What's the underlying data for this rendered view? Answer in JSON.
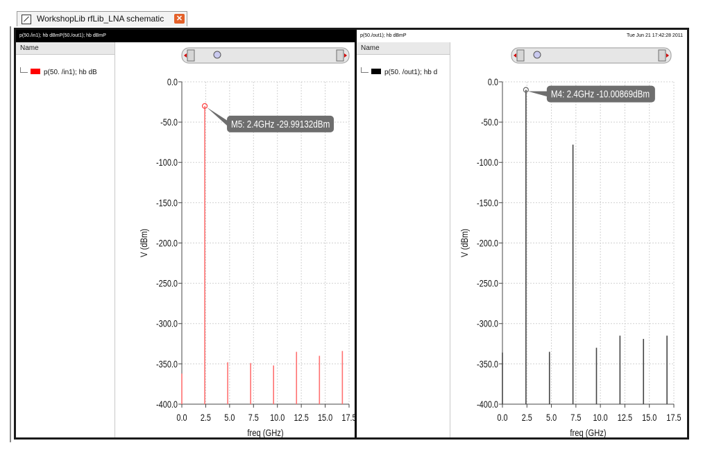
{
  "tab": {
    "title": "WorkshopLib rfLib_LNA schematic",
    "close_glyph": "✕"
  },
  "panels": [
    {
      "header": "p(50./in1); hb dBmP(50./out1); hb dBmP",
      "date": "",
      "name_column": "Name",
      "trace_label": "p(50. /in1); hb dB",
      "trace_color": "#ff0000",
      "marker": {
        "label": "M5: 2.4GHz -29.99132dBm"
      }
    },
    {
      "header": "p(50./out1); hb dBmP",
      "date": "Tue Jun 21 17:42:28 2011",
      "name_column": "Name",
      "trace_label": "p(50. /out1); hb d",
      "trace_color": "#000000",
      "marker": {
        "label": "M4: 2.4GHz -10.00869dBm"
      }
    }
  ],
  "chart_data": [
    {
      "type": "bar",
      "title": "",
      "xlabel": "freq (GHz)",
      "ylabel": "V (dBm)",
      "xlim": [
        0,
        17.5
      ],
      "ylim": [
        -400,
        0
      ],
      "x_ticks": [
        "0.0",
        "2.5",
        "5.0",
        "7.5",
        "10.0",
        "12.5",
        "15.0",
        "17.5"
      ],
      "y_ticks": [
        "0.0",
        "-50.0",
        "-100.0",
        "-150.0",
        "-200.0",
        "-250.0",
        "-300.0",
        "-350.0",
        "-400.0"
      ],
      "grid": true,
      "series": [
        {
          "color": "#ff7070",
          "x": [
            0.0,
            2.4,
            4.8,
            7.2,
            9.6,
            12.0,
            14.4,
            16.8
          ],
          "values": [
            -362,
            -29.99,
            -348,
            -349,
            -352,
            -335,
            -340,
            -334
          ]
        }
      ],
      "marker": {
        "x": 2.4,
        "y": -29.99,
        "label": "M5: 2.4GHz -29.99132dBm"
      }
    },
    {
      "type": "bar",
      "title": "",
      "xlabel": "freq (GHz)",
      "ylabel": "V (dBm)",
      "xlim": [
        0,
        17.5
      ],
      "ylim": [
        -400,
        0
      ],
      "x_ticks": [
        "0.0",
        "2.5",
        "5.0",
        "7.5",
        "10.0",
        "12.5",
        "15.0",
        "17.5"
      ],
      "y_ticks": [
        "0.0",
        "-50.0",
        "-100.0",
        "-150.0",
        "-200.0",
        "-250.0",
        "-300.0",
        "-350.0",
        "-400.0"
      ],
      "grid": true,
      "series": [
        {
          "color": "#444444",
          "x": [
            0.0,
            2.4,
            4.8,
            7.2,
            9.6,
            12.0,
            14.4,
            16.8
          ],
          "values": [
            -336,
            -10.01,
            -335,
            -78,
            -330,
            -315,
            -319,
            -315
          ]
        }
      ],
      "marker": {
        "x": 2.4,
        "y": -10.01,
        "label": "M4: 2.4GHz -10.00869dBm"
      }
    }
  ]
}
